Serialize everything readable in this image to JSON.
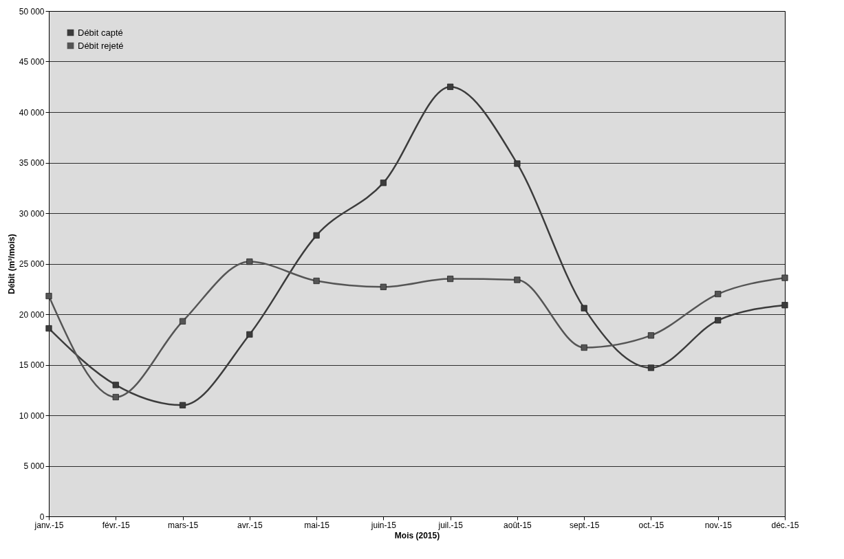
{
  "chart_data": {
    "type": "line",
    "xlabel": "Mois (2015)",
    "ylabel": "Débit (m³/mois)",
    "categories": [
      "janv.-15",
      "févr.-15",
      "mars-15",
      "avr.-15",
      "mai-15",
      "juin-15",
      "juil.-15",
      "août-15",
      "sept.-15",
      "oct.-15",
      "nov.-15",
      "déc.-15"
    ],
    "series": [
      {
        "name": "Débit capté",
        "color": "#3c3c3c",
        "values": [
          18600,
          13000,
          11000,
          18000,
          27800,
          33000,
          42500,
          34900,
          20600,
          14700,
          19400,
          20900
        ]
      },
      {
        "name": "Débit rejeté",
        "color": "#555555",
        "values": [
          21800,
          11800,
          19300,
          25200,
          23300,
          22700,
          23500,
          23400,
          16700,
          17900,
          22000,
          23600
        ]
      }
    ],
    "ylim": [
      0,
      50000
    ],
    "yticks": [
      {
        "value": 0,
        "label": "0"
      },
      {
        "value": 5000,
        "label": "5 000"
      },
      {
        "value": 10000,
        "label": "10 000"
      },
      {
        "value": 15000,
        "label": "15 000"
      },
      {
        "value": 20000,
        "label": "20 000"
      },
      {
        "value": 25000,
        "label": "25 000"
      },
      {
        "value": 30000,
        "label": "30 000"
      },
      {
        "value": 35000,
        "label": "35 000"
      },
      {
        "value": 40000,
        "label": "40 000"
      },
      {
        "value": 45000,
        "label": "45 000"
      },
      {
        "value": 50000,
        "label": "50 000"
      }
    ],
    "grid": "y",
    "legend": "top left",
    "marker": "square",
    "line_style": "solid"
  }
}
